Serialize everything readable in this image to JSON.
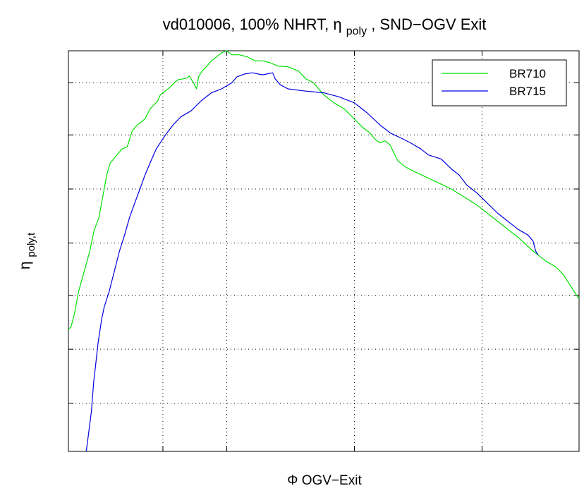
{
  "chart_data": {
    "type": "line",
    "title": {
      "main": "vd010006, 100% NHRT,",
      "eta": "η",
      "eta_sub": "poly",
      "rest": ", SND−OGV Exit"
    },
    "xlabel": {
      "symbol": "Φ",
      "text": " OGV−Exit"
    },
    "ylabel": {
      "symbol": "η",
      "sub": "poly,t"
    },
    "x_tick_labels": [],
    "y_tick_labels": [],
    "grid": true,
    "legend_position": "top-right",
    "series": [
      {
        "name": "BR710",
        "color": "#00e000",
        "points": [
          [
            0.0,
            0.305
          ],
          [
            0.005,
            0.31
          ],
          [
            0.012,
            0.345
          ],
          [
            0.02,
            0.4
          ],
          [
            0.03,
            0.445
          ],
          [
            0.042,
            0.5
          ],
          [
            0.05,
            0.55
          ],
          [
            0.06,
            0.585
          ],
          [
            0.07,
            0.655
          ],
          [
            0.075,
            0.69
          ],
          [
            0.082,
            0.72
          ],
          [
            0.095,
            0.74
          ],
          [
            0.105,
            0.755
          ],
          [
            0.115,
            0.76
          ],
          [
            0.125,
            0.8
          ],
          [
            0.135,
            0.815
          ],
          [
            0.15,
            0.83
          ],
          [
            0.16,
            0.855
          ],
          [
            0.175,
            0.875
          ],
          [
            0.18,
            0.89
          ],
          [
            0.19,
            0.9
          ],
          [
            0.2,
            0.91
          ],
          [
            0.207,
            0.92
          ],
          [
            0.215,
            0.928
          ],
          [
            0.225,
            0.93
          ],
          [
            0.232,
            0.932
          ],
          [
            0.237,
            0.937
          ],
          [
            0.241,
            0.928
          ],
          [
            0.246,
            0.918
          ],
          [
            0.251,
            0.905
          ],
          [
            0.255,
            0.935
          ],
          [
            0.262,
            0.95
          ],
          [
            0.27,
            0.96
          ],
          [
            0.28,
            0.975
          ],
          [
            0.29,
            0.985
          ],
          [
            0.3,
            0.995
          ],
          [
            0.31,
            1.0
          ],
          [
            0.32,
            0.99
          ],
          [
            0.335,
            0.99
          ],
          [
            0.35,
            0.985
          ],
          [
            0.365,
            0.975
          ],
          [
            0.38,
            0.975
          ],
          [
            0.395,
            0.97
          ],
          [
            0.41,
            0.962
          ],
          [
            0.43,
            0.96
          ],
          [
            0.45,
            0.95
          ],
          [
            0.465,
            0.93
          ],
          [
            0.48,
            0.92
          ],
          [
            0.49,
            0.905
          ],
          [
            0.5,
            0.89
          ],
          [
            0.52,
            0.87
          ],
          [
            0.54,
            0.855
          ],
          [
            0.56,
            0.83
          ],
          [
            0.575,
            0.81
          ],
          [
            0.59,
            0.795
          ],
          [
            0.6,
            0.78
          ],
          [
            0.61,
            0.77
          ],
          [
            0.62,
            0.775
          ],
          [
            0.63,
            0.765
          ],
          [
            0.645,
            0.725
          ],
          [
            0.66,
            0.71
          ],
          [
            0.675,
            0.7
          ],
          [
            0.7,
            0.685
          ],
          [
            0.725,
            0.67
          ],
          [
            0.75,
            0.655
          ],
          [
            0.775,
            0.635
          ],
          [
            0.8,
            0.615
          ],
          [
            0.82,
            0.595
          ],
          [
            0.85,
            0.565
          ],
          [
            0.88,
            0.535
          ],
          [
            0.91,
            0.5
          ],
          [
            0.935,
            0.475
          ],
          [
            0.955,
            0.46
          ],
          [
            0.97,
            0.44
          ],
          [
            0.985,
            0.41
          ],
          [
            1.0,
            0.38
          ]
        ]
      },
      {
        "name": "BR715",
        "color": "#0000e0",
        "points": [
          [
            0.035,
            0.0
          ],
          [
            0.04,
            0.05
          ],
          [
            0.045,
            0.1
          ],
          [
            0.048,
            0.15
          ],
          [
            0.05,
            0.18
          ],
          [
            0.052,
            0.2
          ],
          [
            0.058,
            0.27
          ],
          [
            0.065,
            0.33
          ],
          [
            0.07,
            0.36
          ],
          [
            0.08,
            0.4
          ],
          [
            0.09,
            0.45
          ],
          [
            0.1,
            0.5
          ],
          [
            0.11,
            0.54
          ],
          [
            0.12,
            0.585
          ],
          [
            0.13,
            0.62
          ],
          [
            0.14,
            0.655
          ],
          [
            0.15,
            0.69
          ],
          [
            0.16,
            0.72
          ],
          [
            0.172,
            0.755
          ],
          [
            0.19,
            0.79
          ],
          [
            0.205,
            0.815
          ],
          [
            0.22,
            0.835
          ],
          [
            0.24,
            0.85
          ],
          [
            0.26,
            0.875
          ],
          [
            0.28,
            0.895
          ],
          [
            0.3,
            0.905
          ],
          [
            0.32,
            0.92
          ],
          [
            0.33,
            0.935
          ],
          [
            0.345,
            0.942
          ],
          [
            0.36,
            0.945
          ],
          [
            0.38,
            0.94
          ],
          [
            0.4,
            0.945
          ],
          [
            0.405,
            0.93
          ],
          [
            0.415,
            0.915
          ],
          [
            0.43,
            0.905
          ],
          [
            0.46,
            0.9
          ],
          [
            0.5,
            0.895
          ],
          [
            0.53,
            0.885
          ],
          [
            0.56,
            0.87
          ],
          [
            0.585,
            0.845
          ],
          [
            0.61,
            0.815
          ],
          [
            0.63,
            0.795
          ],
          [
            0.655,
            0.78
          ],
          [
            0.67,
            0.77
          ],
          [
            0.69,
            0.755
          ],
          [
            0.705,
            0.74
          ],
          [
            0.73,
            0.73
          ],
          [
            0.75,
            0.705
          ],
          [
            0.765,
            0.69
          ],
          [
            0.78,
            0.665
          ],
          [
            0.8,
            0.645
          ],
          [
            0.82,
            0.62
          ],
          [
            0.84,
            0.595
          ],
          [
            0.86,
            0.575
          ],
          [
            0.88,
            0.555
          ],
          [
            0.9,
            0.54
          ],
          [
            0.91,
            0.525
          ],
          [
            0.915,
            0.5
          ],
          [
            0.92,
            0.49
          ]
        ]
      }
    ]
  }
}
